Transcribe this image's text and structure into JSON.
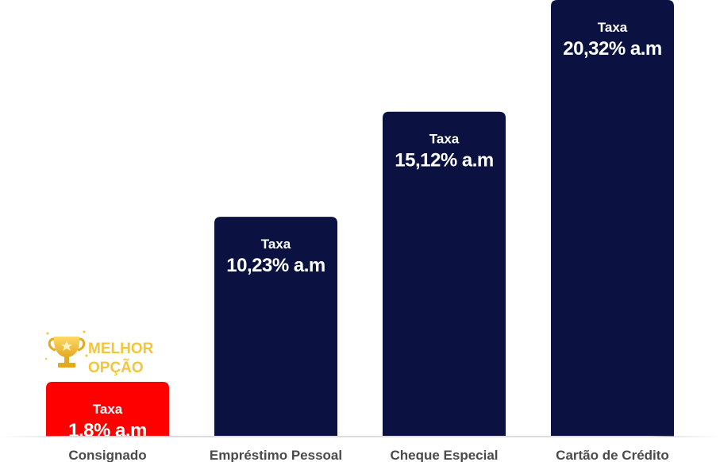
{
  "chart_data": {
    "type": "bar",
    "categories": [
      "Consignado",
      "Empréstimo Pessoal",
      "Cheque Especial",
      "Cartão de Crédito"
    ],
    "values": [
      1.8,
      10.23,
      15.12,
      20.32
    ],
    "value_title": "Taxa",
    "value_labels": [
      "1,8% a.m",
      "10,23% a.m",
      "15,12% a.m",
      "20,32% a.m"
    ],
    "colors": [
      "#ff0000",
      "#0b1140",
      "#0b1140",
      "#0b1140"
    ],
    "highlight_index": 0,
    "badge": {
      "line1": "MELHOR",
      "line2": "OPÇÃO",
      "icon": "trophy-icon",
      "color": "#f2c53d"
    },
    "ylim": [
      0,
      20.32
    ],
    "grid": false
  }
}
